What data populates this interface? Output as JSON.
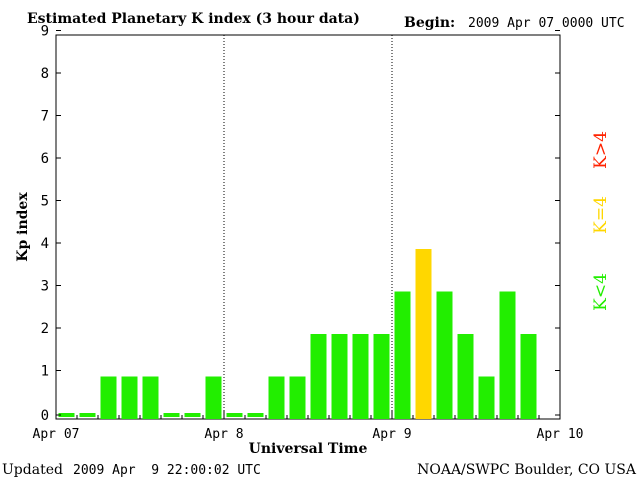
{
  "header": {
    "title": "Estimated Planetary K index (3 hour data)",
    "begin_label": "Begin:",
    "begin_value": "2009 Apr 07 0000 UTC"
  },
  "footer": {
    "updated_label": "Updated",
    "updated_value": "2009 Apr  9 22:00:02 UTC",
    "source": "NOAA/SWPC Boulder, CO USA"
  },
  "legend": {
    "high": "K>4",
    "equal": "K=4",
    "low": "K<4"
  },
  "colors": {
    "low": "#22ee00",
    "equal": "#ffd700",
    "high": "#ff2200",
    "axis": "#000000",
    "background": "#ffffff"
  },
  "chart_data": {
    "type": "bar",
    "title": "Estimated Planetary K index (3 hour data)",
    "xlabel": "Universal Time",
    "ylabel": "Kp index",
    "ylim": [
      0,
      9
    ],
    "yticks": [
      "0",
      "1",
      "2",
      "3",
      "4",
      "5",
      "6",
      "7",
      "8",
      "9"
    ],
    "x_tick_labels": [
      "Apr 07",
      "Apr 8",
      "Apr 9",
      "Apr 10"
    ],
    "day_separators": "dotted vertical lines at Apr 8 and Apr 9",
    "interval_hours": 3,
    "values": [
      0,
      0,
      1,
      1,
      1,
      0,
      0,
      1,
      0,
      0,
      1,
      1,
      2,
      2,
      2,
      2,
      3,
      4,
      3,
      2,
      1,
      3,
      2
    ],
    "grid": false,
    "legend_position": "right"
  }
}
